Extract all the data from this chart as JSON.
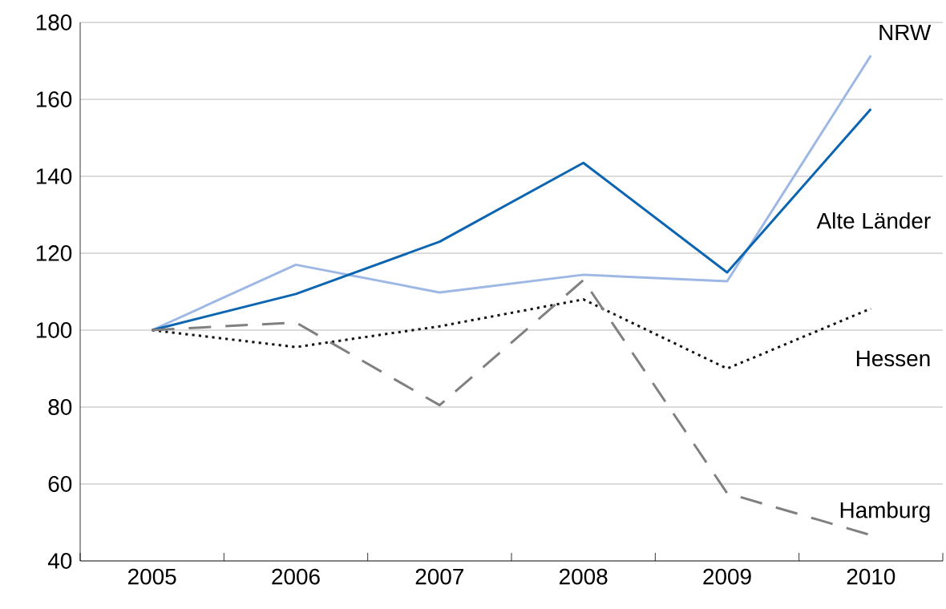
{
  "chart_data": {
    "type": "line",
    "categories": [
      "2005",
      "2006",
      "2007",
      "2008",
      "2009",
      "2010"
    ],
    "ylim": [
      40,
      180
    ],
    "yticks": [
      40,
      60,
      80,
      100,
      120,
      140,
      160,
      180
    ],
    "grid": "y",
    "legend": false,
    "series": [
      {
        "name": "NRW",
        "color": "#9db8e4",
        "line_style": "solid",
        "values": [
          100,
          117,
          109.8,
          114.4,
          112.7,
          171.4
        ]
      },
      {
        "name": "Alte Länder",
        "color": "#0b65b1",
        "line_style": "solid",
        "values": [
          100,
          109.4,
          123,
          143.5,
          115,
          157.5
        ]
      },
      {
        "name": "Hessen",
        "color": "#111111",
        "line_style": "dotted",
        "values": [
          100,
          95.6,
          101,
          108,
          90,
          105.6
        ]
      },
      {
        "name": "Hamburg",
        "color": "#808080",
        "line_style": "dashed",
        "values": [
          100,
          102,
          80.5,
          113,
          57.6,
          46.7
        ]
      }
    ]
  }
}
